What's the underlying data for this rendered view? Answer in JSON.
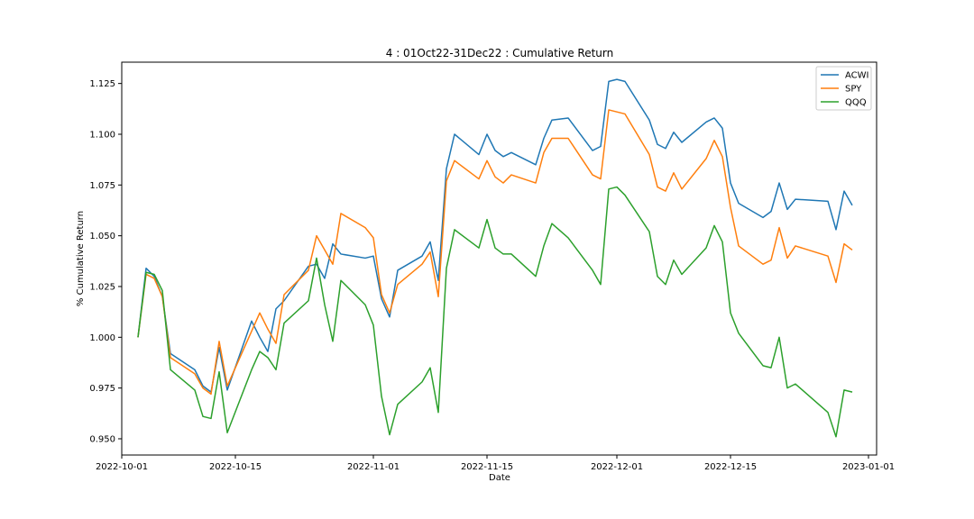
{
  "chart_data": {
    "type": "line",
    "title": "4 : 01Oct22-31Dec22 : Cumulative Return",
    "xlabel": "Date",
    "ylabel": "% Cumulative Return",
    "xlim": [
      "2022-10-01",
      "2023-01-02"
    ],
    "ylim": [
      0.942,
      1.1355
    ],
    "x_ticks": [
      "2022-10-01",
      "2022-10-15",
      "2022-11-01",
      "2022-11-15",
      "2022-12-01",
      "2022-12-15",
      "2023-01-01"
    ],
    "y_ticks": [
      0.95,
      0.975,
      1.0,
      1.025,
      1.05,
      1.075,
      1.1,
      1.125
    ],
    "y_tick_labels": [
      "0.950",
      "0.975",
      "1.000",
      "1.025",
      "1.050",
      "1.075",
      "1.100",
      "1.125"
    ],
    "grid": false,
    "legend_position": "top-right",
    "x": [
      "2022-10-03",
      "2022-10-04",
      "2022-10-05",
      "2022-10-06",
      "2022-10-07",
      "2022-10-10",
      "2022-10-11",
      "2022-10-12",
      "2022-10-13",
      "2022-10-14",
      "2022-10-17",
      "2022-10-18",
      "2022-10-19",
      "2022-10-20",
      "2022-10-21",
      "2022-10-24",
      "2022-10-25",
      "2022-10-26",
      "2022-10-27",
      "2022-10-28",
      "2022-10-31",
      "2022-11-01",
      "2022-11-02",
      "2022-11-03",
      "2022-11-04",
      "2022-11-07",
      "2022-11-08",
      "2022-11-09",
      "2022-11-10",
      "2022-11-11",
      "2022-11-14",
      "2022-11-15",
      "2022-11-16",
      "2022-11-17",
      "2022-11-18",
      "2022-11-21",
      "2022-11-22",
      "2022-11-23",
      "2022-11-25",
      "2022-11-28",
      "2022-11-29",
      "2022-11-30",
      "2022-12-01",
      "2022-12-02",
      "2022-12-05",
      "2022-12-06",
      "2022-12-07",
      "2022-12-08",
      "2022-12-09",
      "2022-12-12",
      "2022-12-13",
      "2022-12-14",
      "2022-12-15",
      "2022-12-16",
      "2022-12-19",
      "2022-12-20",
      "2022-12-21",
      "2022-12-22",
      "2022-12-23",
      "2022-12-27",
      "2022-12-28",
      "2022-12-29",
      "2022-12-30"
    ],
    "series": [
      {
        "name": "ACWI",
        "color": "#1f77b4",
        "values": [
          1.0,
          1.034,
          1.03,
          1.02,
          0.992,
          0.984,
          0.976,
          0.973,
          0.995,
          0.974,
          1.008,
          1.0,
          0.993,
          1.014,
          1.018,
          1.035,
          1.036,
          1.029,
          1.046,
          1.041,
          1.039,
          1.04,
          1.019,
          1.01,
          1.033,
          1.04,
          1.047,
          1.028,
          1.083,
          1.1,
          1.09,
          1.1,
          1.092,
          1.089,
          1.091,
          1.085,
          1.098,
          1.107,
          1.108,
          1.092,
          1.094,
          1.126,
          1.127,
          1.126,
          1.107,
          1.095,
          1.093,
          1.101,
          1.096,
          1.106,
          1.108,
          1.103,
          1.076,
          1.066,
          1.059,
          1.062,
          1.076,
          1.063,
          1.068,
          1.067,
          1.053,
          1.072,
          1.065
        ]
      },
      {
        "name": "SPY",
        "color": "#ff7f0e",
        "values": [
          1.0,
          1.031,
          1.029,
          1.02,
          0.99,
          0.982,
          0.975,
          0.972,
          0.998,
          0.976,
          1.003,
          1.012,
          1.004,
          0.997,
          1.021,
          1.033,
          1.05,
          1.043,
          1.036,
          1.061,
          1.054,
          1.049,
          1.021,
          1.012,
          1.026,
          1.036,
          1.042,
          1.02,
          1.077,
          1.087,
          1.078,
          1.087,
          1.079,
          1.076,
          1.08,
          1.076,
          1.091,
          1.098,
          1.098,
          1.08,
          1.078,
          1.112,
          1.111,
          1.11,
          1.09,
          1.074,
          1.072,
          1.081,
          1.073,
          1.088,
          1.097,
          1.089,
          1.064,
          1.045,
          1.036,
          1.038,
          1.054,
          1.039,
          1.045,
          1.04,
          1.027,
          1.046,
          1.043
        ]
      },
      {
        "name": "QQQ",
        "color": "#2ca02c",
        "values": [
          1.0,
          1.032,
          1.031,
          1.023,
          0.984,
          0.974,
          0.961,
          0.96,
          0.983,
          0.953,
          0.984,
          0.993,
          0.99,
          0.984,
          1.007,
          1.018,
          1.039,
          1.016,
          0.998,
          1.028,
          1.016,
          1.006,
          0.971,
          0.952,
          0.967,
          0.978,
          0.985,
          0.963,
          1.034,
          1.053,
          1.044,
          1.058,
          1.044,
          1.041,
          1.041,
          1.03,
          1.045,
          1.056,
          1.049,
          1.033,
          1.026,
          1.073,
          1.074,
          1.07,
          1.052,
          1.03,
          1.026,
          1.038,
          1.031,
          1.044,
          1.055,
          1.047,
          1.012,
          1.002,
          0.986,
          0.985,
          1.0,
          0.975,
          0.977,
          0.963,
          0.951,
          0.974,
          0.973
        ]
      }
    ]
  }
}
